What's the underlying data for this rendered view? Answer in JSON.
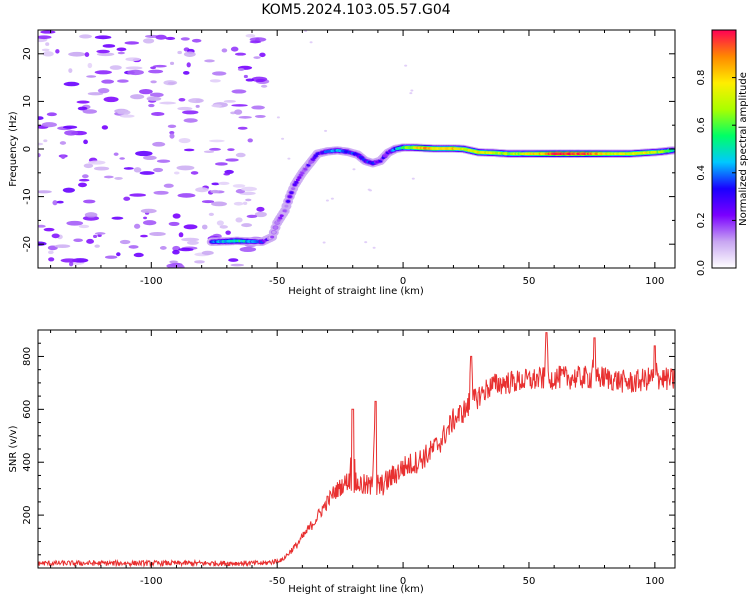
{
  "figure_title": "KOM5.2024.103.05.57.G04",
  "chart_data": [
    {
      "type": "heatmap",
      "xlabel": "Height of straight line (km)",
      "ylabel": "Frequency (Hz)",
      "xlim": [
        -145,
        108
      ],
      "ylim": [
        -25,
        25
      ],
      "xticks": [
        -100,
        -50,
        0,
        50,
        100
      ],
      "yticks": [
        -20,
        -10,
        0,
        10,
        20
      ],
      "colorbar": {
        "label": "Normalized spectral amplitude",
        "range": [
          0,
          1
        ],
        "ticks": [
          0.0,
          0.2,
          0.4,
          0.6,
          0.8
        ],
        "colormap": "rainbow",
        "colors": [
          "#ffffff",
          "#c8a6f2",
          "#7a00ff",
          "#1a00ff",
          "#00c8ff",
          "#00ff66",
          "#aaff00",
          "#ffee00",
          "#ff8800",
          "#ff0055"
        ]
      },
      "ridge": [
        {
          "x": -76,
          "y": -19.5,
          "amp": 0.35
        },
        {
          "x": -70,
          "y": -19.4,
          "amp": 0.45
        },
        {
          "x": -66,
          "y": -19.3,
          "amp": 0.55
        },
        {
          "x": -62,
          "y": -19.4,
          "amp": 0.45
        },
        {
          "x": -56,
          "y": -19.5,
          "amp": 0.3
        },
        {
          "x": -52,
          "y": -18.5,
          "amp": 0.15
        },
        {
          "x": -50,
          "y": -15.5,
          "amp": 0.2
        },
        {
          "x": -47,
          "y": -13.0,
          "amp": 0.15
        },
        {
          "x": -45,
          "y": -10.0,
          "amp": 0.25
        },
        {
          "x": -43,
          "y": -7.5,
          "amp": 0.2
        },
        {
          "x": -40,
          "y": -5.0,
          "amp": 0.2
        },
        {
          "x": -37,
          "y": -3.0,
          "amp": 0.22
        },
        {
          "x": -34,
          "y": -1.0,
          "amp": 0.25
        },
        {
          "x": -30,
          "y": -0.5,
          "amp": 0.35
        },
        {
          "x": -26,
          "y": -0.3,
          "amp": 0.4
        },
        {
          "x": -22,
          "y": -0.6,
          "amp": 0.35
        },
        {
          "x": -18,
          "y": -1.2,
          "amp": 0.3
        },
        {
          "x": -15,
          "y": -2.5,
          "amp": 0.32
        },
        {
          "x": -12,
          "y": -3.0,
          "amp": 0.3
        },
        {
          "x": -9,
          "y": -2.5,
          "amp": 0.25
        },
        {
          "x": -6,
          "y": -0.8,
          "amp": 0.25
        },
        {
          "x": -3,
          "y": 0.0,
          "amp": 0.4
        },
        {
          "x": 0,
          "y": 0.3,
          "amp": 0.55
        },
        {
          "x": 4,
          "y": 0.3,
          "amp": 0.7
        },
        {
          "x": 8,
          "y": 0.2,
          "amp": 0.85
        },
        {
          "x": 12,
          "y": 0.1,
          "amp": 0.8
        },
        {
          "x": 16,
          "y": 0.1,
          "amp": 0.75
        },
        {
          "x": 20,
          "y": 0.1,
          "amp": 0.8
        },
        {
          "x": 24,
          "y": 0.0,
          "amp": 0.7
        },
        {
          "x": 30,
          "y": -0.7,
          "amp": 0.75
        },
        {
          "x": 36,
          "y": -0.8,
          "amp": 0.7
        },
        {
          "x": 42,
          "y": -1.0,
          "amp": 0.65
        },
        {
          "x": 48,
          "y": -1.0,
          "amp": 0.7
        },
        {
          "x": 54,
          "y": -1.0,
          "amp": 0.8
        },
        {
          "x": 60,
          "y": -1.0,
          "amp": 0.92
        },
        {
          "x": 66,
          "y": -1.0,
          "amp": 0.95
        },
        {
          "x": 72,
          "y": -1.0,
          "amp": 0.92
        },
        {
          "x": 78,
          "y": -1.0,
          "amp": 0.85
        },
        {
          "x": 84,
          "y": -1.0,
          "amp": 0.7
        },
        {
          "x": 90,
          "y": -1.0,
          "amp": 0.75
        },
        {
          "x": 96,
          "y": -0.8,
          "amp": 0.75
        },
        {
          "x": 102,
          "y": -0.6,
          "amp": 0.65
        },
        {
          "x": 107,
          "y": -0.3,
          "amp": 0.55
        }
      ],
      "noise_region": {
        "x": [
          -145,
          -55
        ],
        "y": [
          -25,
          25
        ],
        "amp": [
          0.05,
          0.25
        ]
      }
    },
    {
      "type": "line",
      "xlabel": "Height of straight line (km)",
      "ylabel": "SNR (v/v)",
      "xlim": [
        -145,
        108
      ],
      "ylim": [
        0,
        900
      ],
      "xticks": [
        -100,
        -50,
        0,
        50,
        100
      ],
      "yticks": [
        200,
        400,
        600,
        800
      ],
      "color": "#e83030",
      "envelope": [
        {
          "x": -145,
          "y": 18
        },
        {
          "x": -100,
          "y": 18
        },
        {
          "x": -55,
          "y": 18
        },
        {
          "x": -48,
          "y": 30
        },
        {
          "x": -42,
          "y": 90
        },
        {
          "x": -35,
          "y": 180
        },
        {
          "x": -28,
          "y": 280
        },
        {
          "x": -22,
          "y": 330
        },
        {
          "x": -15,
          "y": 310
        },
        {
          "x": -10,
          "y": 300
        },
        {
          "x": -5,
          "y": 340
        },
        {
          "x": 0,
          "y": 380
        },
        {
          "x": 5,
          "y": 400
        },
        {
          "x": 10,
          "y": 430
        },
        {
          "x": 15,
          "y": 480
        },
        {
          "x": 20,
          "y": 560
        },
        {
          "x": 25,
          "y": 600
        },
        {
          "x": 30,
          "y": 650
        },
        {
          "x": 35,
          "y": 690
        },
        {
          "x": 40,
          "y": 700
        },
        {
          "x": 50,
          "y": 710
        },
        {
          "x": 60,
          "y": 720
        },
        {
          "x": 70,
          "y": 720
        },
        {
          "x": 80,
          "y": 720
        },
        {
          "x": 90,
          "y": 700
        },
        {
          "x": 100,
          "y": 720
        },
        {
          "x": 108,
          "y": 710
        }
      ],
      "spikes": [
        {
          "x": -20,
          "y": 600
        },
        {
          "x": -11,
          "y": 630
        },
        {
          "x": 57,
          "y": 890
        },
        {
          "x": 76,
          "y": 870
        },
        {
          "x": 27,
          "y": 800
        },
        {
          "x": 100,
          "y": 840
        }
      ],
      "noise_amplitude": 45
    }
  ]
}
